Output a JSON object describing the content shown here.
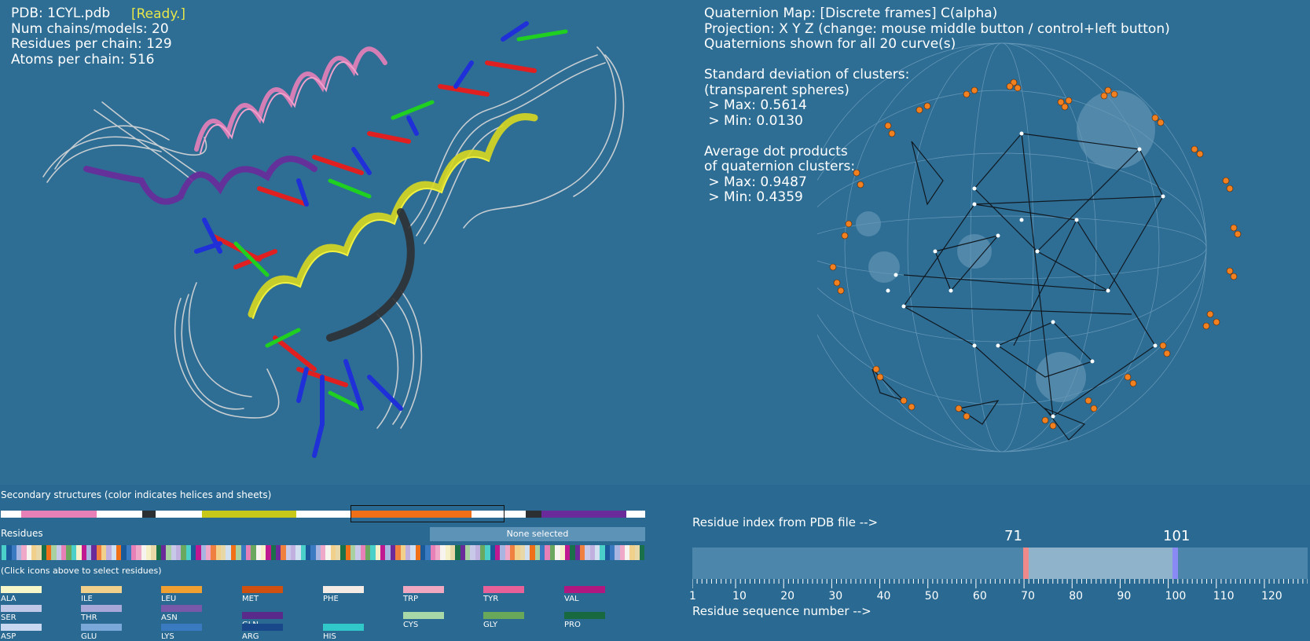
{
  "left_info": {
    "pdb": "PDB: 1CYL.pdb",
    "status": "[Ready.]",
    "chains": "Num chains/models: 20",
    "residues": "Residues per chain: 129",
    "atoms": "Atoms per chain: 516"
  },
  "right_info": {
    "line1": "Quaternion Map: [Discrete frames] C(alpha)",
    "line2": "Projection: X Y Z (change: mouse middle button / control+left button)",
    "line3": "Quaternions shown for all 20 curve(s)",
    "line4": "Standard deviation of clusters:",
    "line5": "(transparent spheres)",
    "line6": " > Max: 0.5614",
    "line7": " > Min: 0.0130",
    "line8": "Average dot products",
    "line9": "of quaternion clusters:",
    "line10": " > Max: 0.9487",
    "line11": " > Min: 0.4359"
  },
  "secondary": {
    "label": "Secondary structures (color indicates helices and sheets)",
    "segments": [
      {
        "color": "#e880b8"
      },
      {
        "color": "#2d3033"
      },
      {
        "color": "#c8c81a"
      },
      {
        "color": "#f07018"
      },
      {
        "color": "#2d3033"
      },
      {
        "color": "#6a2a9a"
      }
    ]
  },
  "residues": {
    "label": "Residues",
    "none_selected": "None selected",
    "hint": "(Click icons above to select residues)",
    "strip_colors": [
      "#4ad0c8",
      "#a7b5e0",
      "#f0d08a",
      "#f07018",
      "#e880b8",
      "#f6f0c8",
      "#6a2a9a",
      "#c0b0e0",
      "#1a5a9a",
      "#f0a8c8",
      "#e8d8a8",
      "#a8d0a0",
      "#6aa860",
      "#c01890",
      "#f08040",
      "#d0e0f0",
      "#3a7ac0",
      "#f7f3ee",
      "#1a7048",
      "#c8c8e8"
    ],
    "keys": [
      {
        "name": "ALA",
        "color": "#f6f6c8"
      },
      {
        "name": "ILE",
        "color": "#f0d08a"
      },
      {
        "name": "LEU",
        "color": "#f0a030"
      },
      {
        "name": "MET",
        "color": "#d05010"
      },
      {
        "name": "PHE",
        "color": "#f4ece4"
      },
      {
        "name": "TRP",
        "color": "#f0a8c0"
      },
      {
        "name": "TYR",
        "color": "#e86098"
      },
      {
        "name": "VAL",
        "color": "#b01880"
      },
      {
        "name": "SER",
        "color": "#c0c8e8"
      },
      {
        "name": "THR",
        "color": "#a8a8d8"
      },
      {
        "name": "ASN",
        "color": "#7858a8"
      },
      {
        "name": "GLN",
        "color": "#5a2a8a"
      },
      {
        "name": "CYS",
        "color": "#a8d8a8"
      },
      {
        "name": "GLY",
        "color": "#68a858"
      },
      {
        "name": "PRO",
        "color": "#186840"
      },
      {
        "name": "ASP",
        "color": "#c8d8f0"
      },
      {
        "name": "GLU",
        "color": "#7aa8d8"
      },
      {
        "name": "LYS",
        "color": "#3a7ac0"
      },
      {
        "name": "ARG",
        "color": "#18488a"
      },
      {
        "name": "HIS",
        "color": "#30c8c8"
      }
    ]
  },
  "slider": {
    "caption_top": "Residue index from PDB file -->",
    "caption_bottom": "Residue sequence number -->",
    "value_left": "71",
    "value_right": "101",
    "ticks": [
      "1",
      "10",
      "20",
      "30",
      "40",
      "50",
      "60",
      "70",
      "80",
      "90",
      "100",
      "110",
      "120"
    ]
  }
}
